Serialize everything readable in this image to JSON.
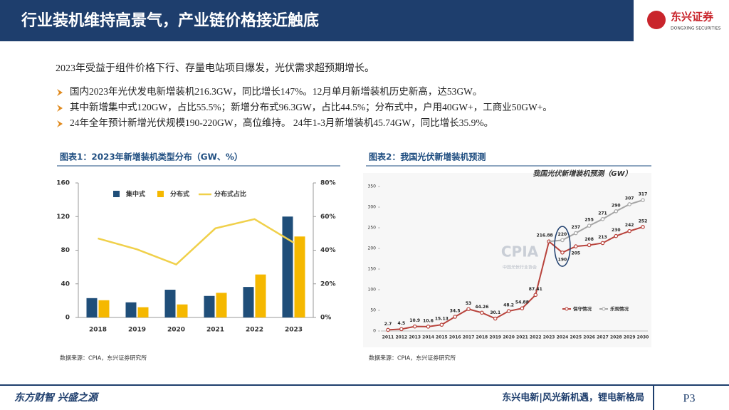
{
  "header": {
    "title": "行业装机维持高景气，产业链价格接近触底",
    "logo": "东兴证券",
    "logo_sub": "DONGXING SECURITIES"
  },
  "intro": "2023年受益于组件价格下行、存量电站项目爆发，光伏需求超预期增长。",
  "bullets": [
    "国内2023年光伏发电新增装机216.3GW，同比增长147%。12月单月新增装机历史新高，达53GW。",
    "其中新增集中式120GW，占比55.5%；新增分布式96.3GW，占比44.5%；分布式中，户用40GW+，工商业50GW+。",
    "24年全年预计新增光伏规模190-220GW，高位维持。 24年1-3月新增装机45.74GW，同比增长35.9%。"
  ],
  "chart_data": [
    {
      "type": "bar",
      "title": "图表1：2023年新增装机类型分布（GW、%）",
      "source": "数据来源：CPIA，东兴证券研究所",
      "categories": [
        "2018",
        "2019",
        "2020",
        "2021",
        "2022",
        "2023"
      ],
      "series": [
        {
          "name": "集中式",
          "color": "#1f4e79",
          "values": [
            23,
            18,
            33,
            25.6,
            36.3,
            120
          ]
        },
        {
          "name": "分布式",
          "color": "#f5b800",
          "values": [
            20.5,
            12.2,
            15.5,
            29.3,
            51.1,
            96.3
          ]
        },
        {
          "name": "分布式占比",
          "color": "#f0d04a",
          "axis": "y2",
          "type": "line",
          "values": [
            47,
            40.5,
            31.5,
            53,
            58.5,
            44.5
          ]
        }
      ],
      "ylim": [
        0,
        160
      ],
      "yticks": [
        0,
        40,
        80,
        120,
        160
      ],
      "y2lim": [
        0,
        80
      ],
      "y2ticks": [
        {
          "value": 0,
          "label": "0%"
        },
        {
          "value": 20,
          "label": "20%"
        },
        {
          "value": 40,
          "label": "40%"
        },
        {
          "value": 60,
          "label": "60%"
        },
        {
          "value": 80,
          "label": "80%"
        }
      ],
      "legend": "top"
    },
    {
      "type": "line",
      "title": "图表2：我国光伏新增装机预测",
      "subtitle": "我国光伏新增装机预测（GW）",
      "source": "数据来源：CPIA，东兴证券研究所",
      "annotations": [
        "CPIA",
        "中国光伏行业协会"
      ],
      "categories": [
        "2011",
        "2012",
        "2013",
        "2014",
        "2015",
        "2016",
        "2017",
        "2018",
        "2019",
        "2020",
        "2021",
        "2022",
        "2023",
        "2024",
        "2025",
        "2026",
        "2027",
        "2028",
        "2029",
        "2030"
      ],
      "series": [
        {
          "color": "#b8433c",
          "values": [
            2.7,
            4.5,
            10.9,
            10.6,
            15.13,
            34.5,
            53,
            44.26,
            30.1,
            48.2,
            54.88,
            87.41,
            216.88,
            null,
            null,
            null,
            null,
            null,
            null,
            null
          ]
        },
        {
          "name": "保守情况",
          "color": "#b8433c",
          "values": [
            null,
            null,
            null,
            null,
            null,
            null,
            null,
            null,
            null,
            null,
            null,
            null,
            216.88,
            190,
            205,
            208,
            213,
            230,
            242,
            252
          ]
        },
        {
          "name": "乐观情况",
          "color": "#a6a6a6",
          "values": [
            null,
            null,
            null,
            null,
            null,
            null,
            null,
            null,
            null,
            null,
            null,
            null,
            216.88,
            220,
            237,
            255,
            271,
            290,
            307,
            317
          ]
        }
      ],
      "ylim": [
        0,
        350
      ],
      "yticks": [
        0,
        50,
        100,
        150,
        200,
        250,
        300,
        350
      ],
      "legend": "lower right"
    }
  ],
  "footer": {
    "left": "东方财智 兴盛之源",
    "center": "东兴电新|风光新机遇，锂电新格局",
    "page": "P3"
  }
}
